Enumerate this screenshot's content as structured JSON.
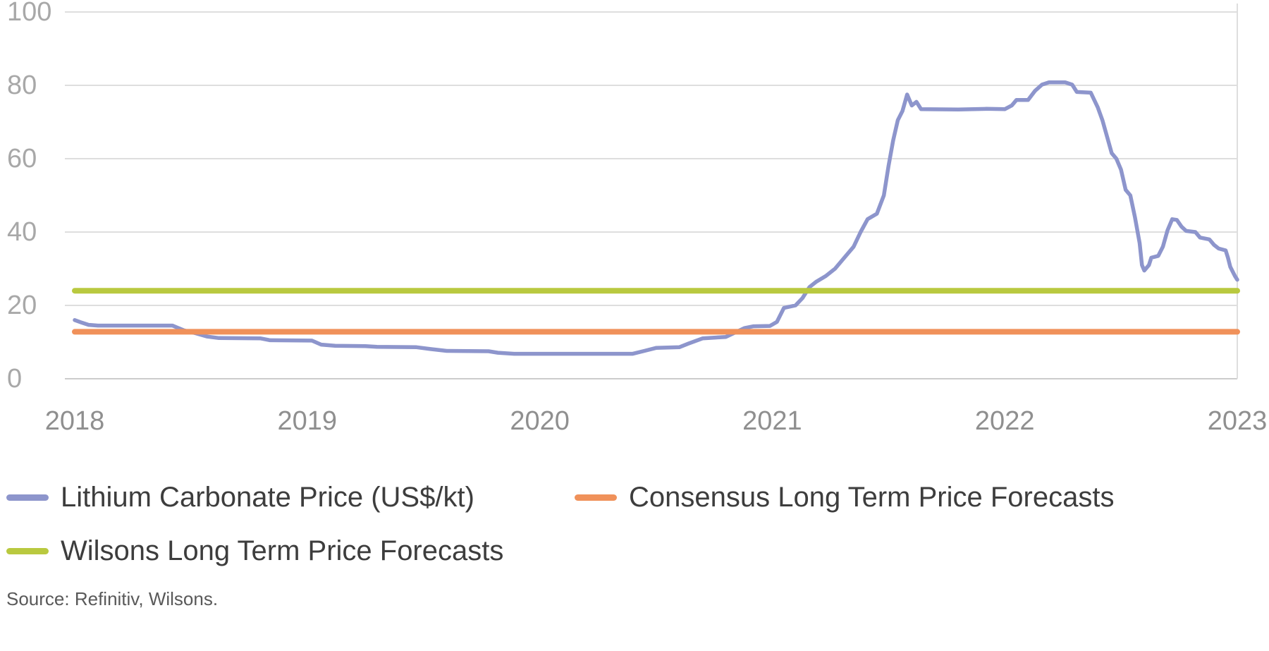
{
  "chart_data": {
    "type": "line",
    "title": "",
    "xlabel": "",
    "ylabel": "",
    "x_range": [
      2018,
      2023
    ],
    "y_range": [
      0,
      100
    ],
    "x_ticks": [
      "2018",
      "2019",
      "2020",
      "2021",
      "2022",
      "2023"
    ],
    "x_tick_values": [
      2018,
      2019,
      2020,
      2021,
      2022,
      2023
    ],
    "y_ticks": [
      "0",
      "20",
      "40",
      "60",
      "80",
      "100"
    ],
    "y_tick_values": [
      0,
      20,
      40,
      60,
      80,
      100
    ],
    "grid": "horizontal",
    "legend_position": "bottom-left",
    "series": [
      {
        "id": "lithium-carbonate-price",
        "name": "Lithium Carbonate Price (US$/kt)",
        "color": "#8d95cc",
        "width": 5.5,
        "points": [
          [
            2018.0,
            16.0
          ],
          [
            2018.03,
            15.3
          ],
          [
            2018.06,
            14.7
          ],
          [
            2018.1,
            14.5
          ],
          [
            2018.42,
            14.5
          ],
          [
            2018.47,
            13.2
          ],
          [
            2018.52,
            12.4
          ],
          [
            2018.57,
            11.5
          ],
          [
            2018.62,
            11.1
          ],
          [
            2018.8,
            11.0
          ],
          [
            2018.84,
            10.5
          ],
          [
            2019.02,
            10.4
          ],
          [
            2019.06,
            9.3
          ],
          [
            2019.12,
            9.0
          ],
          [
            2019.25,
            8.9
          ],
          [
            2019.3,
            8.7
          ],
          [
            2019.47,
            8.6
          ],
          [
            2019.53,
            8.1
          ],
          [
            2019.6,
            7.6
          ],
          [
            2019.78,
            7.5
          ],
          [
            2019.82,
            7.1
          ],
          [
            2019.89,
            6.8
          ],
          [
            2020.4,
            6.8
          ],
          [
            2020.45,
            7.6
          ],
          [
            2020.5,
            8.4
          ],
          [
            2020.6,
            8.6
          ],
          [
            2020.64,
            9.6
          ],
          [
            2020.7,
            11.0
          ],
          [
            2020.8,
            11.4
          ],
          [
            2020.84,
            12.6
          ],
          [
            2020.88,
            13.8
          ],
          [
            2020.92,
            14.3
          ],
          [
            2020.99,
            14.4
          ],
          [
            2021.02,
            15.5
          ],
          [
            2021.05,
            19.3
          ],
          [
            2021.1,
            20.0
          ],
          [
            2021.13,
            22.0
          ],
          [
            2021.16,
            25.0
          ],
          [
            2021.19,
            26.5
          ],
          [
            2021.23,
            28.0
          ],
          [
            2021.27,
            30.0
          ],
          [
            2021.31,
            33.0
          ],
          [
            2021.35,
            36.0
          ],
          [
            2021.38,
            40.0
          ],
          [
            2021.41,
            43.5
          ],
          [
            2021.45,
            45.0
          ],
          [
            2021.48,
            50.0
          ],
          [
            2021.5,
            58.0
          ],
          [
            2021.52,
            65.0
          ],
          [
            2021.54,
            70.5
          ],
          [
            2021.56,
            73.0
          ],
          [
            2021.58,
            77.5
          ],
          [
            2021.6,
            74.5
          ],
          [
            2021.62,
            75.5
          ],
          [
            2021.64,
            73.5
          ],
          [
            2021.8,
            73.4
          ],
          [
            2021.92,
            73.6
          ],
          [
            2022.0,
            73.5
          ],
          [
            2022.03,
            74.5
          ],
          [
            2022.05,
            76.0
          ],
          [
            2022.1,
            76.0
          ],
          [
            2022.13,
            78.5
          ],
          [
            2022.16,
            80.2
          ],
          [
            2022.19,
            80.8
          ],
          [
            2022.26,
            80.8
          ],
          [
            2022.29,
            80.2
          ],
          [
            2022.31,
            78.2
          ],
          [
            2022.37,
            78.0
          ],
          [
            2022.4,
            74.0
          ],
          [
            2022.42,
            70.5
          ],
          [
            2022.44,
            66.0
          ],
          [
            2022.46,
            61.5
          ],
          [
            2022.48,
            60.0
          ],
          [
            2022.5,
            57.0
          ],
          [
            2022.52,
            51.5
          ],
          [
            2022.54,
            50.0
          ],
          [
            2022.56,
            44.0
          ],
          [
            2022.58,
            37.0
          ],
          [
            2022.59,
            31.0
          ],
          [
            2022.6,
            29.5
          ],
          [
            2022.62,
            31.0
          ],
          [
            2022.63,
            33.0
          ],
          [
            2022.66,
            33.5
          ],
          [
            2022.68,
            36.0
          ],
          [
            2022.7,
            40.5
          ],
          [
            2022.72,
            43.5
          ],
          [
            2022.74,
            43.3
          ],
          [
            2022.76,
            41.5
          ],
          [
            2022.78,
            40.3
          ],
          [
            2022.82,
            40.0
          ],
          [
            2022.84,
            38.5
          ],
          [
            2022.88,
            38.0
          ],
          [
            2022.9,
            36.5
          ],
          [
            2022.92,
            35.5
          ],
          [
            2022.95,
            35.0
          ],
          [
            2022.96,
            33.0
          ],
          [
            2022.97,
            30.5
          ],
          [
            2022.99,
            28.0
          ],
          [
            2023.0,
            27.0
          ]
        ]
      },
      {
        "id": "consensus-long-term-forecast",
        "name": "Consensus Long Term Price Forecasts",
        "color": "#f0915a",
        "width": 8,
        "points": [
          [
            2018,
            12.8
          ],
          [
            2023,
            12.8
          ]
        ]
      },
      {
        "id": "wilsons-long-term-forecast",
        "name": "Wilsons Long Term Price Forecasts",
        "color": "#b9c93f",
        "width": 8,
        "points": [
          [
            2018,
            24.0
          ],
          [
            2023,
            24.0
          ]
        ]
      }
    ]
  },
  "source": {
    "text": "Source: Refinitiv, Wilsons."
  },
  "colors": {
    "background": "#ffffff",
    "grid_line": "#dedede",
    "axis_line": "#cccccc",
    "y_tick_label": "#a8a8a8",
    "x_tick_label": "#8f8f8f",
    "legend_text": "#3d3d3d",
    "source_text": "#595959",
    "lithium_line": "#8d95cc",
    "consensus_line": "#f0915a",
    "wilsons_line": "#b9c93f"
  }
}
